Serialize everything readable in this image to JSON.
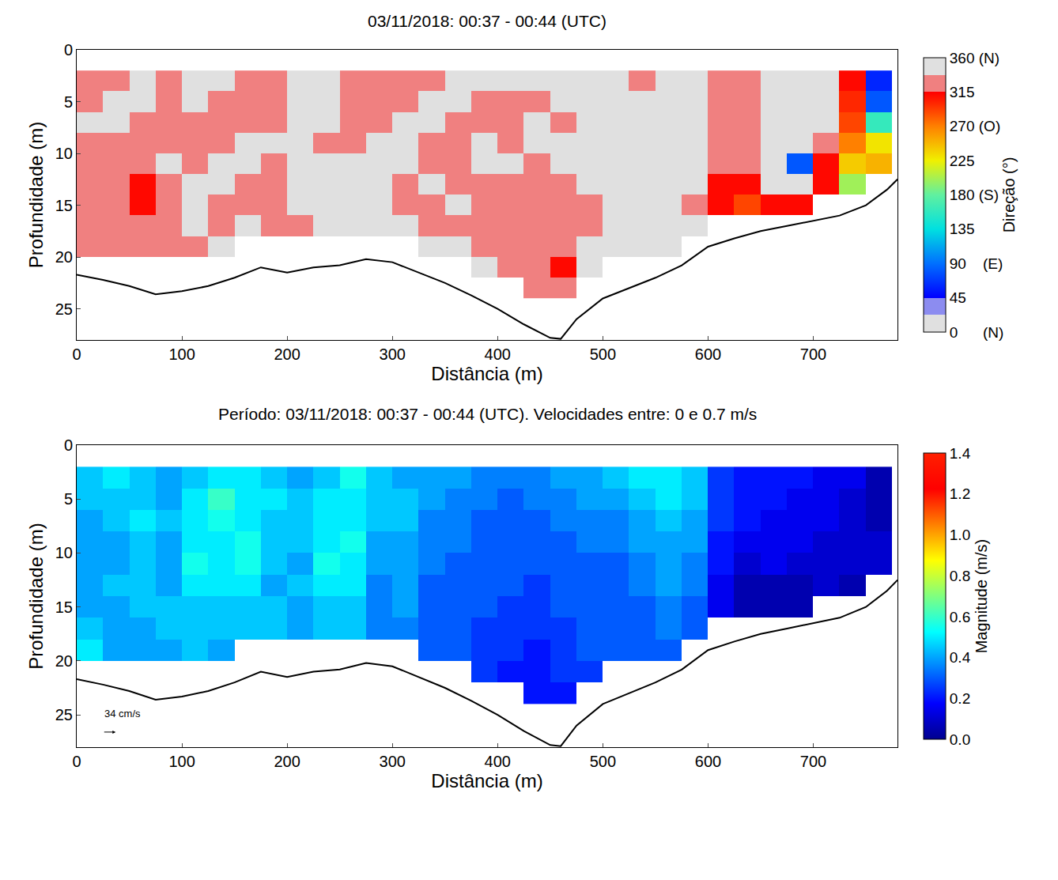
{
  "chart_data": [
    {
      "type": "heatmap",
      "title": "03/11/2018: 00:37 - 00:44 (UTC)",
      "xlabel": "Distância (m)",
      "ylabel": "Profundidade (m)",
      "xlim": [
        0,
        780
      ],
      "xticks": [
        0,
        100,
        200,
        300,
        400,
        500,
        600,
        700
      ],
      "ylim": [
        28,
        0
      ],
      "yticks": [
        0,
        5,
        10,
        15,
        20,
        25
      ],
      "grid": false,
      "x": [
        12.5,
        37.5,
        62.5,
        87.5,
        112.5,
        137.5,
        162.5,
        187.5,
        212.5,
        237.5,
        262.5,
        287.5,
        312.5,
        337.5,
        362.5,
        387.5,
        412.5,
        437.5,
        462.5,
        487.5,
        512.5,
        537.5,
        562.5,
        587.5,
        612.5,
        637.5,
        662.5,
        687.5,
        712.5,
        737.5,
        762.5
      ],
      "y": [
        3,
        5,
        7,
        9,
        11,
        13,
        15,
        17,
        19,
        21,
        23
      ],
      "columns": [
        [
          330,
          330,
          350,
          330,
          330,
          330,
          330,
          330,
          330
        ],
        [
          330,
          350,
          350,
          330,
          330,
          330,
          330,
          330,
          330
        ],
        [
          350,
          350,
          330,
          330,
          330,
          312,
          312,
          330,
          330
        ],
        [
          330,
          330,
          330,
          330,
          350,
          330,
          330,
          330,
          330
        ],
        [
          350,
          350,
          330,
          330,
          330,
          350,
          350,
          350,
          330
        ],
        [
          350,
          330,
          330,
          330,
          350,
          350,
          330,
          330,
          350
        ],
        [
          330,
          330,
          330,
          350,
          350,
          330,
          330,
          350
        ],
        [
          330,
          330,
          330,
          350,
          330,
          330,
          330,
          330
        ],
        [
          350,
          350,
          350,
          350,
          350,
          350,
          350,
          330
        ],
        [
          350,
          350,
          350,
          330,
          350,
          350,
          350,
          350
        ],
        [
          330,
          330,
          330,
          330,
          350,
          350,
          350,
          350
        ],
        [
          330,
          330,
          330,
          350,
          350,
          350,
          350,
          350
        ],
        [
          330,
          330,
          350,
          350,
          350,
          330,
          330,
          350
        ],
        [
          330,
          350,
          350,
          330,
          330,
          350,
          330,
          330,
          350
        ],
        [
          350,
          350,
          330,
          330,
          330,
          330,
          350,
          330,
          350
        ],
        [
          350,
          330,
          330,
          350,
          350,
          330,
          330,
          330,
          330,
          350
        ],
        [
          350,
          330,
          330,
          330,
          350,
          330,
          330,
          330,
          330,
          330
        ],
        [
          350,
          330,
          350,
          350,
          330,
          330,
          330,
          330,
          330,
          330,
          330
        ],
        [
          350,
          350,
          330,
          350,
          350,
          330,
          330,
          330,
          330,
          312,
          330
        ],
        [
          350,
          350,
          350,
          350,
          350,
          350,
          330,
          330,
          350,
          350
        ],
        [
          350,
          350,
          350,
          350,
          350,
          350,
          350,
          350,
          350
        ],
        [
          330,
          350,
          350,
          350,
          350,
          350,
          350,
          350,
          350
        ],
        [
          350,
          350,
          350,
          350,
          350,
          350,
          350,
          350,
          350
        ],
        [
          350,
          350,
          350,
          350,
          350,
          350,
          330,
          350
        ],
        [
          330,
          330,
          330,
          330,
          330,
          312,
          312
        ],
        [
          330,
          330,
          330,
          330,
          330,
          312,
          290
        ],
        [
          350,
          350,
          350,
          350,
          350,
          350,
          312
        ],
        [
          350,
          350,
          350,
          350,
          80,
          350,
          312
        ],
        [
          350,
          350,
          350,
          330,
          312,
          312
        ],
        [
          312,
          300,
          290,
          270,
          240,
          200
        ],
        [
          60,
          80,
          160,
          230,
          250
        ]
      ],
      "colorbar": {
        "title": "Direção (°)",
        "range": [
          0,
          360
        ],
        "ticks": [
          {
            "value": 360,
            "label": "360 (N)"
          },
          315,
          {
            "value": 270,
            "label": "270 (O)"
          },
          225,
          {
            "value": 180,
            "label": "180 (S)"
          },
          135,
          {
            "value": 90,
            "label": "90    (E)"
          },
          45,
          {
            "value": 0,
            "label": "0      (N)"
          }
        ]
      },
      "bottom": {
        "x": [
          0,
          25,
          50,
          75,
          100,
          125,
          150,
          175,
          200,
          225,
          250,
          275,
          300,
          325,
          350,
          375,
          400,
          425,
          450,
          460,
          475,
          500,
          525,
          550,
          575,
          600,
          625,
          650,
          675,
          700,
          725,
          750,
          770,
          780
        ],
        "depth": [
          21.7,
          22.2,
          22.8,
          23.6,
          23.3,
          22.8,
          22,
          21,
          21.5,
          21,
          20.8,
          20.2,
          20.5,
          21.5,
          22.5,
          23.7,
          25,
          26.5,
          27.8,
          27.9,
          26,
          24,
          23,
          22,
          20.8,
          19,
          18.2,
          17.5,
          17,
          16.5,
          16,
          15,
          13.5,
          12.5
        ]
      }
    },
    {
      "type": "heatmap",
      "title": "Período: 03/11/2018: 00:37 - 00:44 (UTC). Velocidades entre: 0 e 0.7 m/s",
      "xlabel": "Distância (m)",
      "ylabel": "Profundidade (m)",
      "xlim": [
        0,
        780
      ],
      "xticks": [
        0,
        100,
        200,
        300,
        400,
        500,
        600,
        700
      ],
      "ylim": [
        28,
        0
      ],
      "yticks": [
        0,
        5,
        10,
        15,
        20,
        25
      ],
      "grid": false,
      "annotations": [
        "34 cm/s"
      ],
      "x": [
        12.5,
        37.5,
        62.5,
        87.5,
        112.5,
        137.5,
        162.5,
        187.5,
        212.5,
        237.5,
        262.5,
        287.5,
        312.5,
        337.5,
        362.5,
        387.5,
        412.5,
        437.5,
        462.5,
        487.5,
        512.5,
        537.5,
        562.5,
        587.5,
        612.5,
        637.5,
        662.5,
        687.5,
        712.5,
        737.5,
        762.5
      ],
      "y": [
        3,
        5,
        7,
        9,
        11,
        13,
        15,
        17,
        19,
        21,
        23
      ],
      "columns": [
        [
          0.45,
          0.45,
          0.4,
          0.4,
          0.4,
          0.4,
          0.4,
          0.45,
          0.5
        ],
        [
          0.5,
          0.45,
          0.45,
          0.4,
          0.4,
          0.45,
          0.4,
          0.4,
          0.4
        ],
        [
          0.45,
          0.45,
          0.5,
          0.45,
          0.45,
          0.45,
          0.45,
          0.4,
          0.4
        ],
        [
          0.4,
          0.4,
          0.45,
          0.4,
          0.4,
          0.4,
          0.45,
          0.45,
          0.4
        ],
        [
          0.45,
          0.5,
          0.5,
          0.5,
          0.55,
          0.5,
          0.45,
          0.45,
          0.45
        ],
        [
          0.5,
          0.6,
          0.55,
          0.5,
          0.5,
          0.5,
          0.45,
          0.45,
          0.4
        ],
        [
          0.5,
          0.5,
          0.5,
          0.55,
          0.55,
          0.5,
          0.45,
          0.45
        ],
        [
          0.45,
          0.5,
          0.45,
          0.45,
          0.45,
          0.4,
          0.45,
          0.45
        ],
        [
          0.4,
          0.45,
          0.45,
          0.45,
          0.4,
          0.45,
          0.4,
          0.4
        ],
        [
          0.45,
          0.5,
          0.5,
          0.5,
          0.55,
          0.5,
          0.45,
          0.45
        ],
        [
          0.55,
          0.5,
          0.5,
          0.55,
          0.5,
          0.5,
          0.45,
          0.45
        ],
        [
          0.45,
          0.45,
          0.45,
          0.4,
          0.4,
          0.35,
          0.35,
          0.35
        ],
        [
          0.4,
          0.45,
          0.45,
          0.4,
          0.4,
          0.4,
          0.4,
          0.35
        ],
        [
          0.4,
          0.4,
          0.35,
          0.35,
          0.35,
          0.3,
          0.3,
          0.3,
          0.3
        ],
        [
          0.4,
          0.35,
          0.35,
          0.35,
          0.3,
          0.3,
          0.3,
          0.3,
          0.3
        ],
        [
          0.35,
          0.35,
          0.3,
          0.3,
          0.3,
          0.3,
          0.3,
          0.25,
          0.25,
          0.25
        ],
        [
          0.35,
          0.3,
          0.3,
          0.3,
          0.3,
          0.3,
          0.25,
          0.25,
          0.25,
          0.2
        ],
        [
          0.35,
          0.35,
          0.3,
          0.3,
          0.3,
          0.25,
          0.25,
          0.25,
          0.2,
          0.2,
          0.2
        ],
        [
          0.4,
          0.35,
          0.35,
          0.3,
          0.3,
          0.3,
          0.3,
          0.25,
          0.25,
          0.25,
          0.2
        ],
        [
          0.4,
          0.4,
          0.35,
          0.35,
          0.3,
          0.3,
          0.3,
          0.3,
          0.3,
          0.25
        ],
        [
          0.45,
          0.4,
          0.35,
          0.35,
          0.3,
          0.3,
          0.3,
          0.3,
          0.3
        ],
        [
          0.5,
          0.45,
          0.4,
          0.4,
          0.35,
          0.35,
          0.3,
          0.3,
          0.3
        ],
        [
          0.5,
          0.5,
          0.45,
          0.4,
          0.4,
          0.4,
          0.35,
          0.35,
          0.3
        ],
        [
          0.45,
          0.45,
          0.4,
          0.4,
          0.35,
          0.35,
          0.3,
          0.3
        ],
        [
          0.25,
          0.25,
          0.25,
          0.2,
          0.2,
          0.15,
          0.15
        ],
        [
          0.2,
          0.2,
          0.2,
          0.15,
          0.1,
          0.05,
          0.05
        ],
        [
          0.2,
          0.2,
          0.15,
          0.15,
          0.15,
          0.05,
          0.05
        ],
        [
          0.2,
          0.15,
          0.15,
          0.15,
          0.1,
          0.05,
          0.05
        ],
        [
          0.15,
          0.15,
          0.15,
          0.1,
          0.1,
          0.1
        ],
        [
          0.15,
          0.1,
          0.1,
          0.1,
          0.1,
          0.05
        ],
        [
          0.05,
          0.05,
          0.05,
          0.1,
          0.1
        ]
      ],
      "colorbar": {
        "title": "Magnitude (m/s)",
        "range": [
          0,
          1.4
        ],
        "ticks": [
          {
            "value": 0,
            "label": "0.0"
          },
          0.2,
          0.4,
          0.6,
          0.8,
          {
            "value": 1,
            "label": "1.0"
          },
          1.2,
          1.4
        ]
      },
      "bottom": {
        "x": [
          0,
          25,
          50,
          75,
          100,
          125,
          150,
          175,
          200,
          225,
          250,
          275,
          300,
          325,
          350,
          375,
          400,
          425,
          450,
          460,
          475,
          500,
          525,
          550,
          575,
          600,
          625,
          650,
          675,
          700,
          725,
          750,
          770,
          780
        ],
        "depth": [
          21.7,
          22.2,
          22.8,
          23.6,
          23.3,
          22.8,
          22,
          21,
          21.5,
          21,
          20.8,
          20.2,
          20.5,
          21.5,
          22.5,
          23.7,
          25,
          26.5,
          27.8,
          27.9,
          26,
          24,
          23,
          22,
          20.8,
          19,
          18.2,
          17.5,
          17,
          16.5,
          16,
          15,
          13.5,
          12.5
        ]
      }
    }
  ]
}
